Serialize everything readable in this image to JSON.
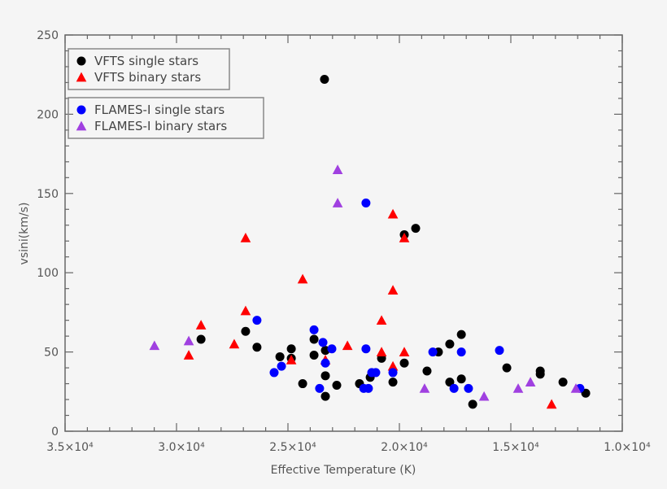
{
  "chart_data": {
    "type": "scatter",
    "title": "",
    "xlabel": "Effective Temperature (K)",
    "ylabel": "vsini(km/s)",
    "xlim": [
      35000,
      10000
    ],
    "ylim": [
      0,
      250
    ],
    "x_reversed": true,
    "grid": false,
    "xticks": [
      35000,
      30000,
      25000,
      20000,
      15000,
      10000
    ],
    "xtick_labels": [
      "3.5×10⁴",
      "3.0×10⁴",
      "2.5×10⁴",
      "2.0×10⁴",
      "1.5×10⁴",
      "1.0×10⁴"
    ],
    "yticks": [
      0,
      50,
      100,
      150,
      200,
      250
    ],
    "ytick_labels": [
      "0",
      "50",
      "100",
      "150",
      "200",
      "250"
    ],
    "legend_placement": "top-left",
    "legend_groups": [
      [
        "VFTS single stars",
        "VFTS binary stars"
      ],
      [
        "FLAMES-I single stars",
        "FLAMES-I binary stars"
      ]
    ],
    "series": [
      {
        "name": "VFTS single stars",
        "marker": "circle",
        "color": "#000000",
        "points": [
          [
            28900,
            58
          ],
          [
            26900,
            63
          ],
          [
            26390,
            53
          ],
          [
            25360,
            47
          ],
          [
            24850,
            52
          ],
          [
            24850,
            46
          ],
          [
            24340,
            30
          ],
          [
            23830,
            58
          ],
          [
            23830,
            48
          ],
          [
            23320,
            51
          ],
          [
            23320,
            35
          ],
          [
            23320,
            22
          ],
          [
            22810,
            29
          ],
          [
            21790,
            30
          ],
          [
            21310,
            34
          ],
          [
            20800,
            46
          ],
          [
            20290,
            31
          ],
          [
            19780,
            43
          ],
          [
            23360,
            222
          ],
          [
            19780,
            124
          ],
          [
            19270,
            128
          ],
          [
            18760,
            38
          ],
          [
            18250,
            50
          ],
          [
            17740,
            55
          ],
          [
            17220,
            61
          ],
          [
            17740,
            31
          ],
          [
            17220,
            33
          ],
          [
            16710,
            17
          ],
          [
            15180,
            40
          ],
          [
            13680,
            38
          ],
          [
            13680,
            36
          ],
          [
            12660,
            31
          ],
          [
            11640,
            24
          ]
        ]
      },
      {
        "name": "VFTS binary stars",
        "marker": "triangle",
        "color": "#ff0000",
        "points": [
          [
            29450,
            48
          ],
          [
            28900,
            67
          ],
          [
            27410,
            55
          ],
          [
            26900,
            76
          ],
          [
            26900,
            122
          ],
          [
            24340,
            96
          ],
          [
            24850,
            45
          ],
          [
            23320,
            45
          ],
          [
            22330,
            54
          ],
          [
            20800,
            70
          ],
          [
            20800,
            50
          ],
          [
            20290,
            89
          ],
          [
            20290,
            137
          ],
          [
            20290,
            41
          ],
          [
            19780,
            50
          ],
          [
            19780,
            122
          ],
          [
            13170,
            17
          ]
        ]
      },
      {
        "name": "FLAMES-I single stars",
        "marker": "circle",
        "color": "#0000ff",
        "points": [
          [
            26390,
            70
          ],
          [
            25620,
            37
          ],
          [
            25290,
            41
          ],
          [
            23830,
            64
          ],
          [
            23430,
            56
          ],
          [
            23320,
            43
          ],
          [
            23580,
            27
          ],
          [
            23030,
            52
          ],
          [
            21500,
            52
          ],
          [
            21500,
            144
          ],
          [
            21240,
            37
          ],
          [
            21060,
            37
          ],
          [
            21600,
            27
          ],
          [
            21390,
            27
          ],
          [
            20290,
            37
          ],
          [
            18500,
            50
          ],
          [
            17220,
            50
          ],
          [
            17550,
            27
          ],
          [
            16900,
            27
          ],
          [
            15510,
            51
          ],
          [
            11900,
            27
          ]
        ]
      },
      {
        "name": "FLAMES-I binary stars",
        "marker": "triangle",
        "color": "#a040e0",
        "points": [
          [
            30990,
            54
          ],
          [
            29450,
            57
          ],
          [
            22770,
            165
          ],
          [
            22770,
            144
          ],
          [
            18870,
            27
          ],
          [
            16200,
            22
          ],
          [
            14670,
            27
          ],
          [
            14120,
            31
          ],
          [
            12080,
            27
          ]
        ]
      }
    ]
  }
}
